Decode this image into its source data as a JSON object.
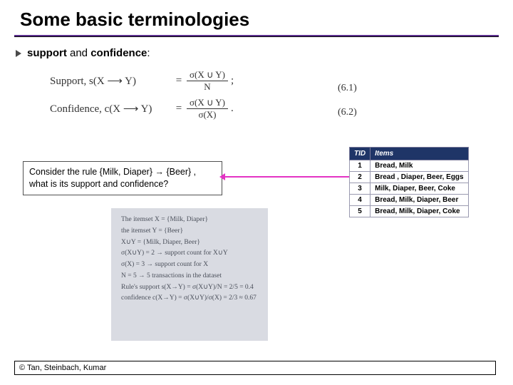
{
  "title": "Some basic terminologies",
  "bullet": {
    "bold": "support",
    "mid": " and ",
    "bold2": "confidence",
    "tail": ":"
  },
  "formulas": {
    "support_label": "Support, s(X ⟶ Y)",
    "confidence_label": "Confidence, c(X ⟶ Y)",
    "eq": "=",
    "sup_num": "σ(X ∪ Y)",
    "sup_den": "N",
    "conf_num": "σ(X ∪ Y)",
    "conf_den": "σ(X)",
    "semi": ";",
    "dot": ".",
    "eqnum1": "(6.1)",
    "eqnum2": "(6.2)"
  },
  "question": "Consider the rule {Milk, Diaper} → {Beer} , what is its support and confidence?",
  "table": {
    "headers": [
      "TID",
      "Items"
    ],
    "rows": [
      [
        "1",
        "Bread, Milk"
      ],
      [
        "2",
        "Bread , Diaper, Beer, Eggs"
      ],
      [
        "3",
        "Milk, Diaper, Beer, Coke"
      ],
      [
        "4",
        "Bread, Milk, Diaper, Beer"
      ],
      [
        "5",
        "Bread, Milk, Diaper, Coke"
      ]
    ]
  },
  "handwriting": {
    "l1": "The itemset X = {Milk, Diaper}",
    "l2": "the itemset Y = {Beer}",
    "l3": "X∪Y = {Milk, Diaper, Beer}",
    "l4": "σ(X∪Y) = 2  → support count for X∪Y",
    "l5": "σ(X) = 3   → support count for X",
    "l6": "N = 5   → 5 transactions in the dataset",
    "l7": "Rule's  support    s(X→Y) = σ(X∪Y)/N = 2/5 = 0.4",
    "l8": "         confidence  c(X→Y) = σ(X∪Y)/σ(X) = 2/3 ≈ 0.67"
  },
  "footer": "© Tan, Steinbach, Kumar",
  "colors": {
    "accent": "#5b2e8e",
    "table_header": "#1f3567",
    "arrow": "#e333c4",
    "hwbg": "#d9dbe2"
  }
}
